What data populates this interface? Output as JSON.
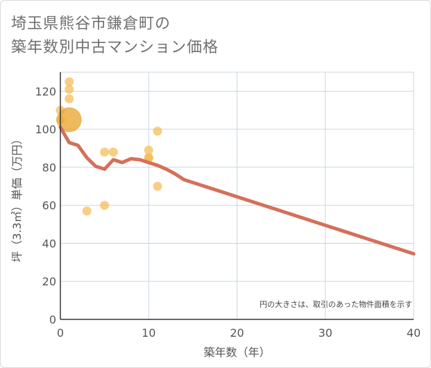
{
  "title_line1": "埼玉県熊谷市鎌倉町の",
  "title_line2": "築年数別中古マンション価格",
  "chart_data": {
    "type": "scatter",
    "xlabel": "築年数（年）",
    "ylabel": "坪（3.3㎡）単価（万円）",
    "xlim": [
      0,
      40
    ],
    "ylim": [
      0,
      130
    ],
    "xticks": [
      0,
      10,
      20,
      30,
      40
    ],
    "yticks": [
      0,
      20,
      40,
      60,
      80,
      100,
      120
    ],
    "grid": true,
    "note": "円の大きさは、取引のあった物件面積を示す",
    "scatter_points": [
      {
        "x": 0,
        "y": 110,
        "size": 1
      },
      {
        "x": 0,
        "y": 105,
        "size": 1
      },
      {
        "x": 1,
        "y": 125,
        "size": 1
      },
      {
        "x": 1,
        "y": 121,
        "size": 1
      },
      {
        "x": 1,
        "y": 116,
        "size": 1
      },
      {
        "x": 1,
        "y": 105,
        "size": 5
      },
      {
        "x": 1,
        "y": 104,
        "size": 1
      },
      {
        "x": 3,
        "y": 57,
        "size": 1
      },
      {
        "x": 5,
        "y": 88,
        "size": 1
      },
      {
        "x": 5,
        "y": 60,
        "size": 1
      },
      {
        "x": 6,
        "y": 88,
        "size": 1
      },
      {
        "x": 10,
        "y": 89,
        "size": 1
      },
      {
        "x": 10,
        "y": 85,
        "size": 1
      },
      {
        "x": 10,
        "y": 85,
        "size": 1
      },
      {
        "x": 11,
        "y": 99,
        "size": 1
      },
      {
        "x": 11,
        "y": 70,
        "size": 1
      }
    ],
    "trend_line": {
      "x": [
        0,
        1,
        2,
        3,
        4,
        5,
        6,
        7,
        8,
        9,
        10,
        11,
        12,
        13,
        14,
        15,
        20,
        25,
        30,
        35,
        40
      ],
      "y": [
        101,
        93,
        91.5,
        85,
        80.5,
        79,
        84,
        82.5,
        84.5,
        84,
        82.5,
        81,
        79,
        76.5,
        73.5,
        72,
        64.5,
        57,
        49.5,
        42,
        34.5
      ]
    },
    "colors": {
      "point": "#f5b94e",
      "point_dark": "#e8a83a",
      "line": "#d4705a",
      "grid": "#c9d6e3",
      "axis": "#333333"
    }
  }
}
